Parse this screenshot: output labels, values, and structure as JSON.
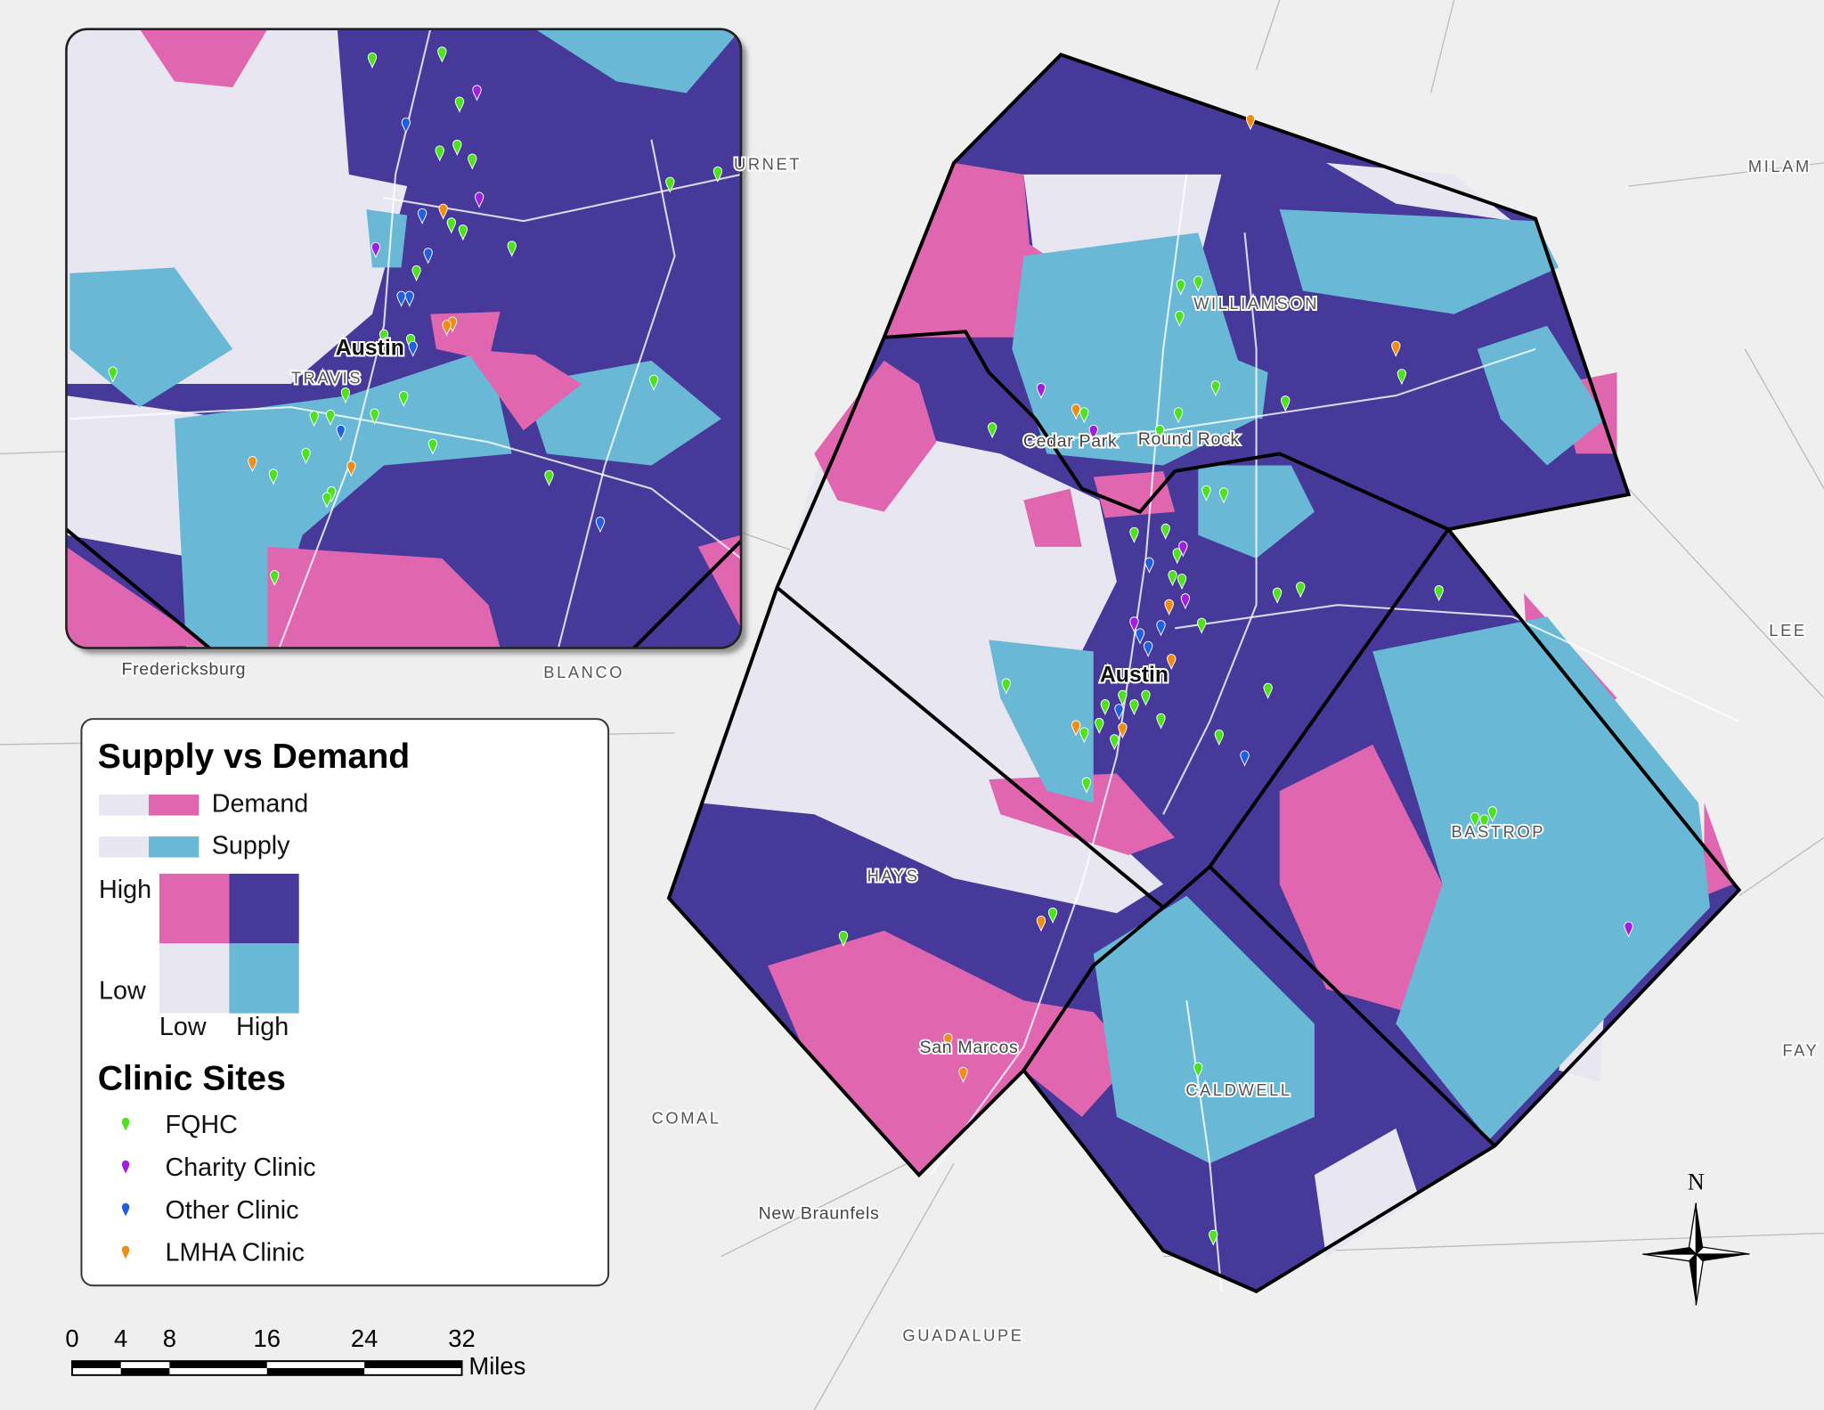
{
  "map": {
    "legend": {
      "title": "Supply vs Demand",
      "demand": "Demand",
      "supply": "Supply",
      "high_y": "High",
      "low_y": "Low",
      "low_x": "Low",
      "high_x": "High",
      "clinic_title": "Clinic Sites",
      "clinics": [
        "FQHC",
        "Charity Clinic",
        "Other Clinic",
        "LMHA Clinic"
      ]
    },
    "places": [
      "Austin",
      "Cedar Park",
      "Round Rock",
      "WILLIAMSON",
      "HAYS",
      "BASTROP",
      "CALDWELL",
      "San Marcos",
      "COMAL",
      "New Braunfels",
      "GUADALUPE",
      "BLANCO",
      "Fredericksburg",
      "MILAM",
      "LEE",
      "URNET",
      "FAY"
    ],
    "inset_places": [
      "Austin",
      "TRAVIS"
    ],
    "scale_bar": {
      "ticks": [
        0,
        4,
        8,
        16,
        24,
        32
      ],
      "unit": "Miles"
    },
    "north": "N"
  }
}
